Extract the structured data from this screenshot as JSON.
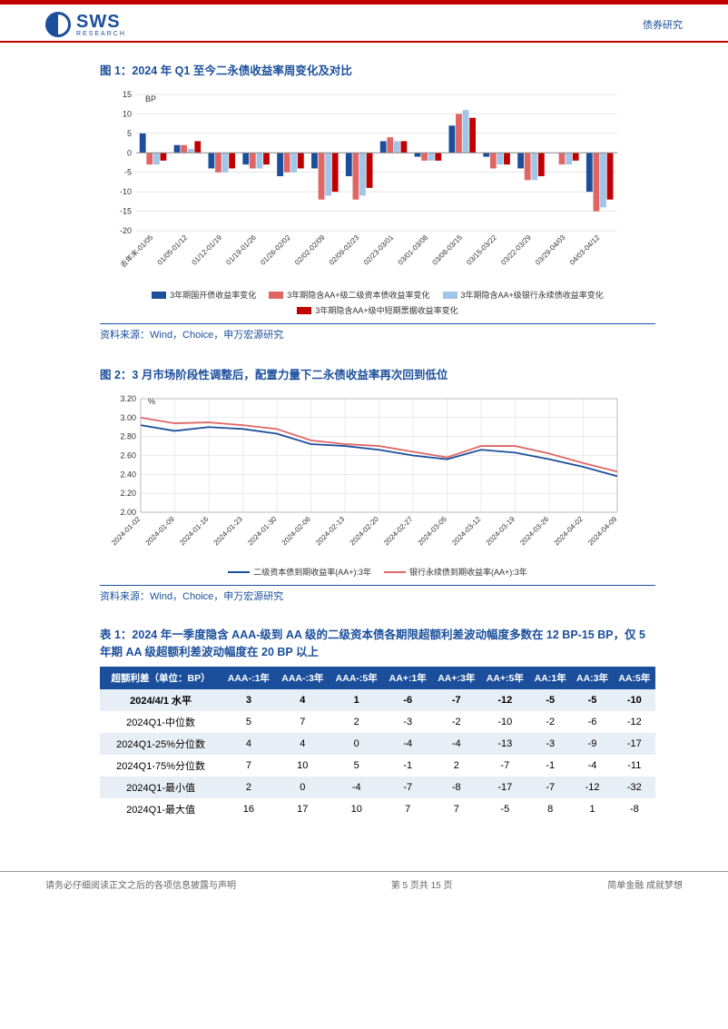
{
  "header": {
    "logo_main": "SWS",
    "logo_sub": "RESEARCH",
    "right": "债券研究"
  },
  "fig1": {
    "title": "图 1：2024 年 Q1 至今二永债收益率周变化及对比",
    "type": "bar",
    "ylabel": "BP",
    "ylim": [
      -20,
      15
    ],
    "ytick_step": 5,
    "background_color": "#ffffff",
    "grid_color": "#d9d9d9",
    "bar_group_width": 0.8,
    "categories": [
      "去年末-01/05",
      "01/05-01/12",
      "01/12-01/19",
      "01/19-01/26",
      "01/26-02/02",
      "02/02-02/09",
      "02/09-02/23",
      "02/23-03/01",
      "03/01-03/08",
      "03/08-03/15",
      "03/15-03/22",
      "03/22-03/29",
      "03/29-04/03",
      "04/03-04/12"
    ],
    "series": [
      {
        "name": "3年期国开债收益率变化",
        "color": "#1b4f9c",
        "values": [
          5,
          2,
          -4,
          -3,
          -6,
          -4,
          -6,
          3,
          -1,
          7,
          -1,
          -4,
          0,
          -10
        ]
      },
      {
        "name": "3年期隐含AA+级二级资本债收益率变化",
        "color": "#e06666",
        "values": [
          -3,
          2,
          -5,
          -4,
          -5,
          -12,
          -12,
          4,
          -2,
          10,
          -4,
          -7,
          -3,
          -15
        ]
      },
      {
        "name": "3年期隐含AA+级银行永续债收益率变化",
        "color": "#9fc5e8",
        "values": [
          -3,
          1,
          -5,
          -4,
          -5,
          -11,
          -11,
          3,
          -2,
          11,
          -3,
          -7,
          -3,
          -14
        ]
      },
      {
        "name": "3年期隐含AA+级中短期票据收益率变化",
        "color": "#c00000",
        "values": [
          -2,
          3,
          -4,
          -3,
          -4,
          -10,
          -9,
          3,
          -2,
          9,
          -3,
          -6,
          -2,
          -12
        ]
      }
    ],
    "source": "资料来源：Wind，Choice，申万宏源研究"
  },
  "fig2": {
    "title": "图 2：3 月市场阶段性调整后，配置力量下二永债收益率再次回到低位",
    "type": "line",
    "ylabel": "%",
    "ylim": [
      2.0,
      3.2
    ],
    "ytick_step": 0.2,
    "background_color": "#ffffff",
    "grid_color": "#d9d9d9",
    "line_width": 1.8,
    "categories": [
      "2024-01-02",
      "2024-01-09",
      "2024-01-16",
      "2024-01-23",
      "2024-01-30",
      "2024-02-06",
      "2024-02-13",
      "2024-02-20",
      "2024-02-27",
      "2024-03-05",
      "2024-03-12",
      "2024-03-19",
      "2024-03-26",
      "2024-04-02",
      "2024-04-09"
    ],
    "series": [
      {
        "name": "二级资本债到期收益率(AA+):3年",
        "color": "#1b4f9c",
        "values": [
          2.92,
          2.86,
          2.9,
          2.88,
          2.83,
          2.72,
          2.7,
          2.66,
          2.6,
          2.56,
          2.66,
          2.63,
          2.56,
          2.48,
          2.38
        ]
      },
      {
        "name": "银行永续债到期收益率(AA+):3年",
        "color": "#e06666",
        "values": [
          3.0,
          2.94,
          2.95,
          2.92,
          2.88,
          2.76,
          2.72,
          2.7,
          2.64,
          2.58,
          2.7,
          2.7,
          2.62,
          2.52,
          2.43
        ]
      }
    ],
    "source": "资料来源：Wind，Choice，申万宏源研究"
  },
  "table1": {
    "title": "表 1：2024 年一季度隐含 AAA-级到 AA 级的二级资本债各期限超额利差波动幅度多数在 12  BP-15 BP，仅 5 年期 AA 级超额利差波动幅度在 20  BP 以上",
    "header_bg": "#1b4f9c",
    "header_color": "#ffffff",
    "alt_row_bg": "#e8eef6",
    "columns": [
      "超额利差（单位：BP）",
      "AAA-:1年",
      "AAA-:3年",
      "AAA-:5年",
      "AA+:1年",
      "AA+:3年",
      "AA+:5年",
      "AA:1年",
      "AA:3年",
      "AA:5年"
    ],
    "rows": [
      [
        "2024/4/1 水平",
        "3",
        "4",
        "1",
        "-6",
        "-7",
        "-12",
        "-5",
        "-5",
        "-10"
      ],
      [
        "2024Q1-中位数",
        "5",
        "7",
        "2",
        "-3",
        "-2",
        "-10",
        "-2",
        "-6",
        "-12"
      ],
      [
        "2024Q1-25%分位数",
        "4",
        "4",
        "0",
        "-4",
        "-4",
        "-13",
        "-3",
        "-9",
        "-17"
      ],
      [
        "2024Q1-75%分位数",
        "7",
        "10",
        "5",
        "-1",
        "2",
        "-7",
        "-1",
        "-4",
        "-11"
      ],
      [
        "2024Q1-最小值",
        "2",
        "0",
        "-4",
        "-7",
        "-8",
        "-17",
        "-7",
        "-12",
        "-32"
      ],
      [
        "2024Q1-最大值",
        "16",
        "17",
        "10",
        "7",
        "7",
        "-5",
        "8",
        "1",
        "-8"
      ]
    ]
  },
  "footer": {
    "left": "请务必仔细阅读正文之后的各项信息披露与声明",
    "center": "第 5 页共 15 页",
    "right": "简单金融 成就梦想"
  }
}
